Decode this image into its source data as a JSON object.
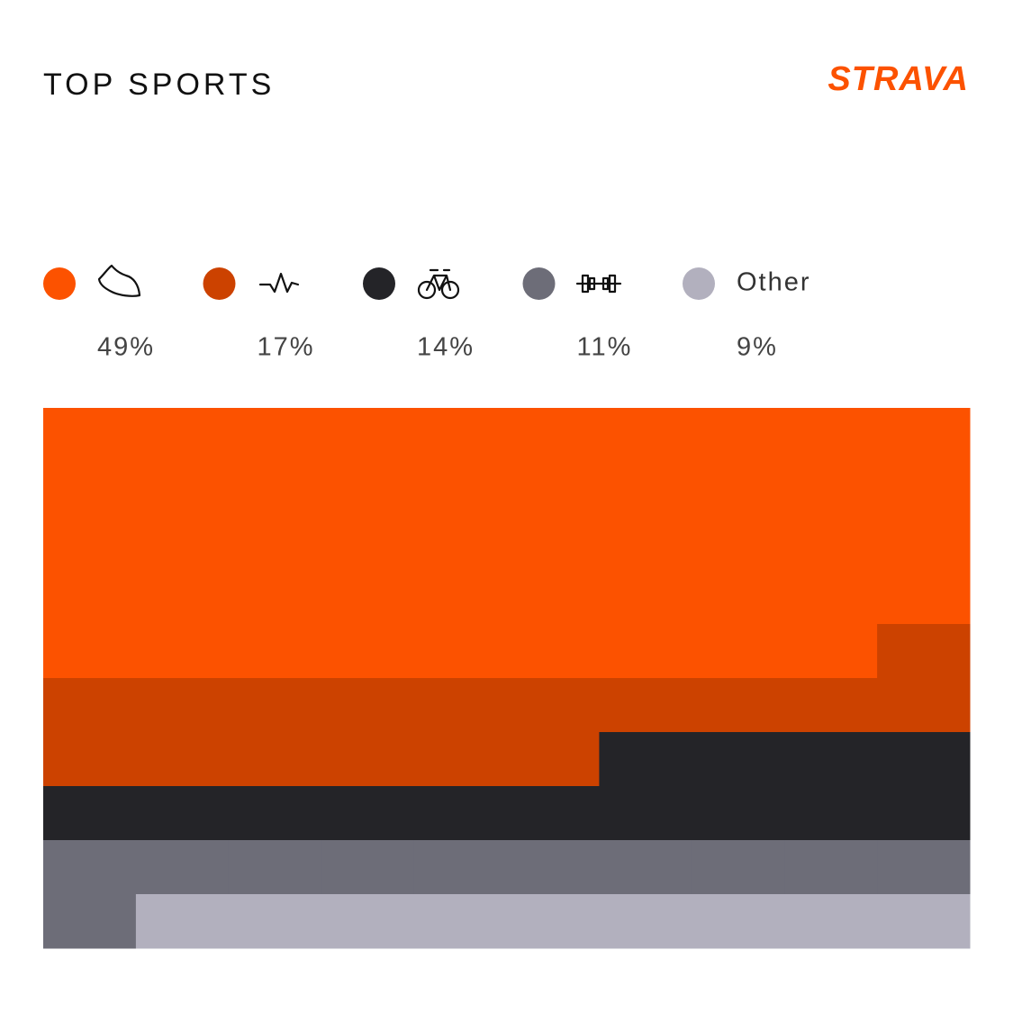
{
  "chart_data": {
    "type": "waffle",
    "title": "TOP SPORTS",
    "brand": "STRAVA",
    "categories": [
      null,
      null,
      null,
      null,
      "Other"
    ],
    "values": [
      49,
      17,
      14,
      11,
      9
    ],
    "value_labels": [
      "49%",
      "17%",
      "14%",
      "11%",
      "9%"
    ],
    "colors": [
      "#fc5200",
      "#cc4200",
      "#242428",
      "#6d6d78",
      "#b2b0be"
    ],
    "rows": 10,
    "columns": 10
  }
}
